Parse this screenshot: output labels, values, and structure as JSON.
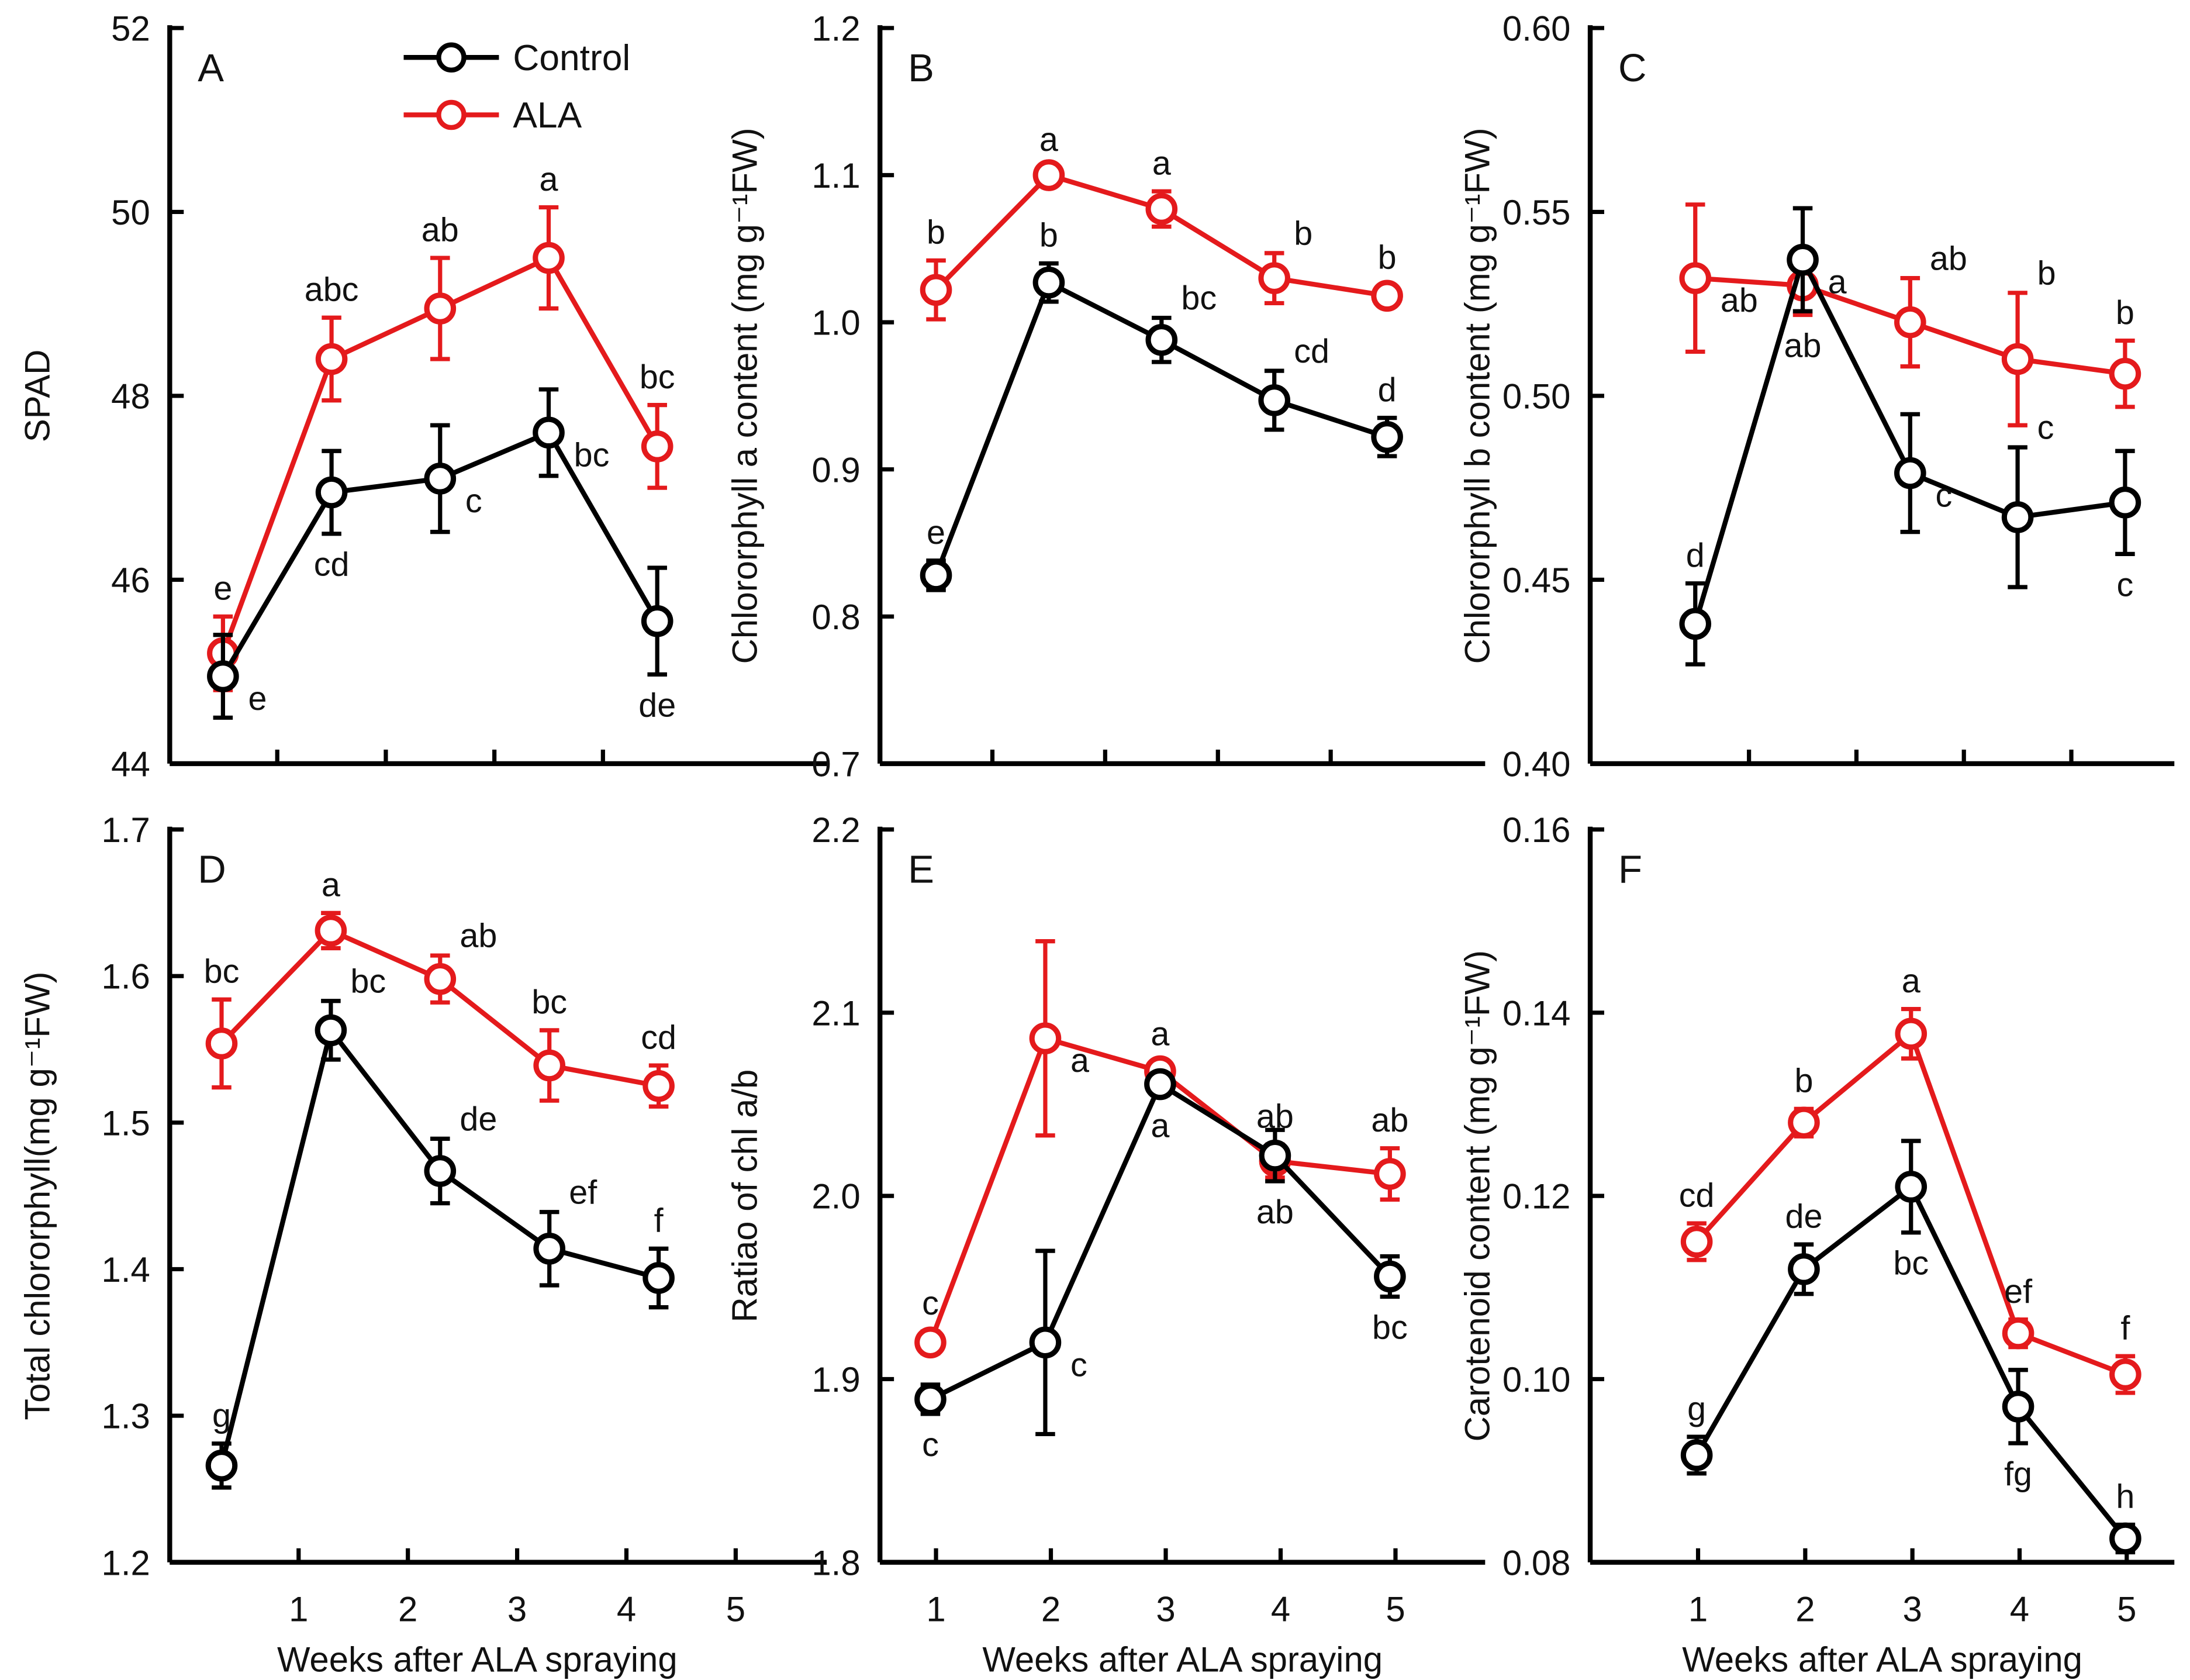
{
  "colors": {
    "control": "#000000",
    "ala": "#e41a1c"
  },
  "legend": {
    "control": "Control",
    "ala": "ALA"
  },
  "chart_data": [
    {
      "type": "line",
      "panel": "A",
      "ylabel": "SPAD",
      "xlabel": "",
      "ylim": [
        44,
        52
      ],
      "yticks": [
        "44",
        "46",
        "48",
        "50",
        "52"
      ],
      "x": [
        1,
        2,
        3,
        4,
        5
      ],
      "series": [
        {
          "name": "Control",
          "values": [
            44.95,
            46.95,
            47.1,
            47.6,
            45.55
          ],
          "errors": [
            0.45,
            0.45,
            0.58,
            0.47,
            0.58
          ],
          "letters": [
            "e",
            "cd",
            "c",
            "bc",
            "de"
          ],
          "letter_pos": [
            "right",
            "below",
            "right",
            "right",
            "below"
          ]
        },
        {
          "name": "ALA",
          "values": [
            45.2,
            48.4,
            48.95,
            49.5,
            47.45
          ],
          "errors": [
            0.4,
            0.45,
            0.55,
            0.55,
            0.45
          ],
          "letters": [
            "e",
            "abc",
            "ab",
            "a",
            "bc"
          ],
          "letter_pos": [
            "above",
            "above",
            "above",
            "above",
            "above"
          ]
        }
      ]
    },
    {
      "type": "line",
      "panel": "B",
      "ylabel": "Chlororphyll a content (mg g⁻¹FW)",
      "xlabel": "",
      "ylim": [
        0.7,
        1.2
      ],
      "yticks": [
        "0.7",
        "0.8",
        "0.9",
        "1.0",
        "1.1",
        "1.2"
      ],
      "x": [
        1,
        2,
        3,
        4,
        5
      ],
      "series": [
        {
          "name": "Control",
          "values": [
            0.828,
            1.027,
            0.988,
            0.947,
            0.922
          ],
          "errors": [
            0.01,
            0.013,
            0.015,
            0.02,
            0.013
          ],
          "letters": [
            "e",
            "b",
            "bc",
            "cd",
            "d"
          ],
          "letter_pos": [
            "above",
            "above",
            "above-right",
            "above-right",
            "above"
          ]
        },
        {
          "name": "ALA",
          "values": [
            1.022,
            1.1,
            1.077,
            1.03,
            1.018
          ],
          "errors": [
            0.02,
            0.005,
            0.012,
            0.017,
            0.007
          ],
          "letters": [
            "b",
            "a",
            "a",
            "b",
            "b"
          ],
          "letter_pos": [
            "above",
            "above",
            "above",
            "above-right",
            "above"
          ]
        }
      ]
    },
    {
      "type": "line",
      "panel": "C",
      "ylabel": "Chlororphyll b content (mg g⁻¹FW)",
      "xlabel": "",
      "ylim": [
        0.4,
        0.6
      ],
      "yticks": [
        "0.40",
        "0.45",
        "0.50",
        "0.55",
        "0.60"
      ],
      "x": [
        1,
        2,
        3,
        4,
        5
      ],
      "series": [
        {
          "name": "Control",
          "values": [
            0.438,
            0.537,
            0.479,
            0.467,
            0.471
          ],
          "errors": [
            0.011,
            0.014,
            0.016,
            0.019,
            0.014
          ],
          "letters": [
            "d",
            "a",
            "c",
            "c",
            "c"
          ],
          "letter_pos": [
            "above",
            "right",
            "right",
            "above-right",
            "below"
          ]
        },
        {
          "name": "ALA",
          "values": [
            0.532,
            0.53,
            0.52,
            0.51,
            0.506
          ],
          "errors": [
            0.02,
            0.008,
            0.012,
            0.018,
            0.009
          ],
          "letters": [
            "ab",
            "ab",
            "ab",
            "b",
            "b"
          ],
          "letter_pos": [
            "right",
            "below",
            "above-right",
            "above-right",
            "above"
          ]
        }
      ]
    },
    {
      "type": "line",
      "panel": "D",
      "ylabel": "Total chlororphyll(mg g⁻¹FW)",
      "xlabel": "Weeks after ALA spraying",
      "ylim": [
        1.2,
        1.7
      ],
      "yticks": [
        "1.2",
        "1.3",
        "1.4",
        "1.5",
        "1.6",
        "1.7"
      ],
      "x": [
        1,
        2,
        3,
        4,
        5
      ],
      "series": [
        {
          "name": "Control",
          "values": [
            1.266,
            1.563,
            1.467,
            1.414,
            1.394
          ],
          "errors": [
            0.015,
            0.02,
            0.022,
            0.025,
            0.02
          ],
          "letters": [
            "g",
            "bc",
            "de",
            "ef",
            "f"
          ],
          "letter_pos": [
            "above",
            "above-right",
            "above-right",
            "above-right",
            "above"
          ]
        },
        {
          "name": "ALA",
          "values": [
            1.554,
            1.631,
            1.598,
            1.539,
            1.525
          ],
          "errors": [
            0.03,
            0.012,
            0.016,
            0.024,
            0.014
          ],
          "letters": [
            "bc",
            "a",
            "ab",
            "bc",
            "cd"
          ],
          "letter_pos": [
            "above",
            "above",
            "above-right",
            "above",
            "above"
          ]
        }
      ]
    },
    {
      "type": "line",
      "panel": "E",
      "ylabel": "Ratiao of chl a/b",
      "xlabel": "Weeks after ALA spraying",
      "ylim": [
        1.8,
        2.2
      ],
      "yticks": [
        "1.8",
        "1.9",
        "2.0",
        "2.1",
        "2.2"
      ],
      "x": [
        1,
        2,
        3,
        4,
        5
      ],
      "series": [
        {
          "name": "Control",
          "values": [
            1.889,
            1.92,
            2.061,
            2.022,
            1.956
          ],
          "errors": [
            0.008,
            0.05,
            0.006,
            0.014,
            0.011
          ],
          "letters": [
            "c",
            "c",
            "a",
            "ab",
            "bc"
          ],
          "letter_pos": [
            "below",
            "right",
            "below",
            "below",
            "below"
          ]
        },
        {
          "name": "ALA",
          "values": [
            1.92,
            2.086,
            2.068,
            2.019,
            2.012
          ],
          "errors": [
            0.006,
            0.053,
            0.005,
            0.009,
            0.014
          ],
          "letters": [
            "c",
            "a",
            "a",
            "ab",
            "ab"
          ],
          "letter_pos": [
            "above",
            "right",
            "above",
            "above",
            "above"
          ]
        }
      ]
    },
    {
      "type": "line",
      "panel": "F",
      "ylabel": "Carotenoid content  (mg g⁻¹FW)",
      "xlabel": "Weeks after ALA spraying",
      "ylim": [
        0.08,
        0.16
      ],
      "yticks": [
        "0.08",
        "0.10",
        "0.12",
        "0.14",
        "0.16"
      ],
      "x": [
        1,
        2,
        3,
        4,
        5
      ],
      "series": [
        {
          "name": "Control",
          "values": [
            0.0917,
            0.112,
            0.121,
            0.097,
            0.0826
          ],
          "errors": [
            0.002,
            0.0027,
            0.005,
            0.004,
            0.0015
          ],
          "letters": [
            "g",
            "de",
            "bc",
            "fg",
            "h"
          ],
          "letter_pos": [
            "above",
            "above",
            "below",
            "below",
            "above"
          ]
        },
        {
          "name": "ALA",
          "values": [
            0.115,
            0.128,
            0.1377,
            0.105,
            0.1005
          ],
          "errors": [
            0.002,
            0.0015,
            0.0027,
            0.0015,
            0.002
          ],
          "letters": [
            "cd",
            "b",
            "a",
            "ef",
            "f"
          ],
          "letter_pos": [
            "above",
            "above",
            "above",
            "above",
            "above"
          ]
        }
      ]
    }
  ]
}
